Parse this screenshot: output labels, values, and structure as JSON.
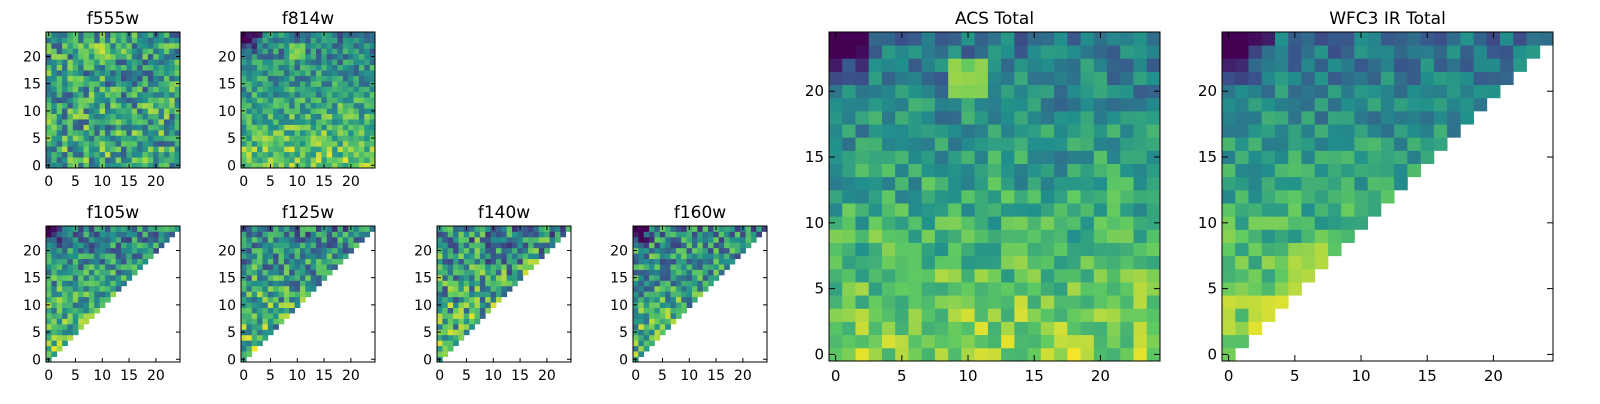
{
  "chart_data": [
    {
      "type": "heatmap",
      "title": "f555w",
      "grid": [
        25,
        25
      ],
      "xlim": [
        0,
        25
      ],
      "ylim": [
        0,
        25
      ],
      "xticks": [
        0,
        5,
        10,
        15,
        20
      ],
      "yticks": [
        0,
        5,
        10,
        15,
        20
      ],
      "mask": "none",
      "seed": 11,
      "trend": 0.08,
      "noise": 0.62,
      "hotspots": [
        {
          "x": 10,
          "y": 21,
          "v": 0.98
        }
      ]
    },
    {
      "type": "heatmap",
      "title": "f814w",
      "grid": [
        25,
        25
      ],
      "xlim": [
        0,
        25
      ],
      "ylim": [
        0,
        25
      ],
      "xticks": [
        0,
        5,
        10,
        15,
        20
      ],
      "yticks": [
        0,
        5,
        10,
        15,
        20
      ],
      "mask": "none",
      "seed": 23,
      "trend": 0.35,
      "noise": 0.45,
      "dark_corner": "top-left",
      "hotspots": [
        {
          "x": 10,
          "y": 21,
          "v": 0.95
        }
      ]
    },
    {
      "type": "heatmap",
      "title": "f105w",
      "grid": [
        25,
        25
      ],
      "xlim": [
        0,
        25
      ],
      "ylim": [
        0,
        25
      ],
      "xticks": [
        0,
        5,
        10,
        15,
        20
      ],
      "yticks": [
        0,
        5,
        10,
        15,
        20
      ],
      "mask": "lower-right-triangle",
      "seed": 37,
      "trend": 0.3,
      "noise": 0.55,
      "dark_corner": "top-left",
      "hotspots": [
        {
          "x": 8,
          "y": 7,
          "v": 0.95
        }
      ]
    },
    {
      "type": "heatmap",
      "title": "f125w",
      "grid": [
        25,
        25
      ],
      "xlim": [
        0,
        25
      ],
      "ylim": [
        0,
        25
      ],
      "xticks": [
        0,
        5,
        10,
        15,
        20
      ],
      "yticks": [
        0,
        5,
        10,
        15,
        20
      ],
      "mask": "lower-right-triangle",
      "seed": 41,
      "trend": 0.3,
      "noise": 0.6,
      "hotspots": [
        {
          "x": 8,
          "y": 7,
          "v": 0.95
        },
        {
          "x": 7,
          "y": 5,
          "v": 0.02
        }
      ]
    },
    {
      "type": "heatmap",
      "title": "f140w",
      "grid": [
        25,
        25
      ],
      "xlim": [
        0,
        25
      ],
      "ylim": [
        0,
        25
      ],
      "xticks": [
        0,
        5,
        10,
        15,
        20
      ],
      "yticks": [
        0,
        5,
        10,
        15,
        20
      ],
      "mask": "lower-right-triangle",
      "seed": 53,
      "trend": 0.2,
      "noise": 0.7,
      "hotspots": [
        {
          "x": 17,
          "y": 17,
          "v": 0.95
        }
      ]
    },
    {
      "type": "heatmap",
      "title": "f160w",
      "grid": [
        25,
        25
      ],
      "xlim": [
        0,
        25
      ],
      "ylim": [
        0,
        25
      ],
      "xticks": [
        0,
        5,
        10,
        15,
        20
      ],
      "yticks": [
        0,
        5,
        10,
        15,
        20
      ],
      "mask": "lower-right-triangle",
      "seed": 67,
      "trend": 0.25,
      "noise": 0.6,
      "dark_corner": "top-left",
      "hotspots": [
        {
          "x": 8,
          "y": 6,
          "v": 0.95
        }
      ]
    },
    {
      "type": "heatmap",
      "title": "ACS Total",
      "grid": [
        25,
        25
      ],
      "xlim": [
        0,
        25
      ],
      "ylim": [
        0,
        25
      ],
      "xticks": [
        0,
        5,
        10,
        15,
        20
      ],
      "yticks": [
        0,
        5,
        10,
        15,
        20
      ],
      "mask": "none",
      "seed": 79,
      "trend": 0.45,
      "noise": 0.35,
      "dark_corner": "top-left",
      "hotspots": [
        {
          "x": 10,
          "y": 21,
          "v": 0.97
        }
      ]
    },
    {
      "type": "heatmap",
      "title": "WFC3 IR Total",
      "grid": [
        25,
        25
      ],
      "xlim": [
        0,
        25
      ],
      "ylim": [
        0,
        25
      ],
      "xticks": [
        0,
        5,
        10,
        15,
        20
      ],
      "yticks": [
        0,
        5,
        10,
        15,
        20
      ],
      "mask": "lower-right-triangle",
      "seed": 97,
      "trend": 0.5,
      "noise": 0.3,
      "dark_corner": "top-left",
      "hotspots": [
        {
          "x": 3,
          "y": 3,
          "v": 0.98
        },
        {
          "x": 6,
          "y": 7,
          "v": 0.93
        }
      ]
    }
  ],
  "colormap": [
    "#440154",
    "#3b528b",
    "#21918c",
    "#5ec962",
    "#fde725"
  ]
}
